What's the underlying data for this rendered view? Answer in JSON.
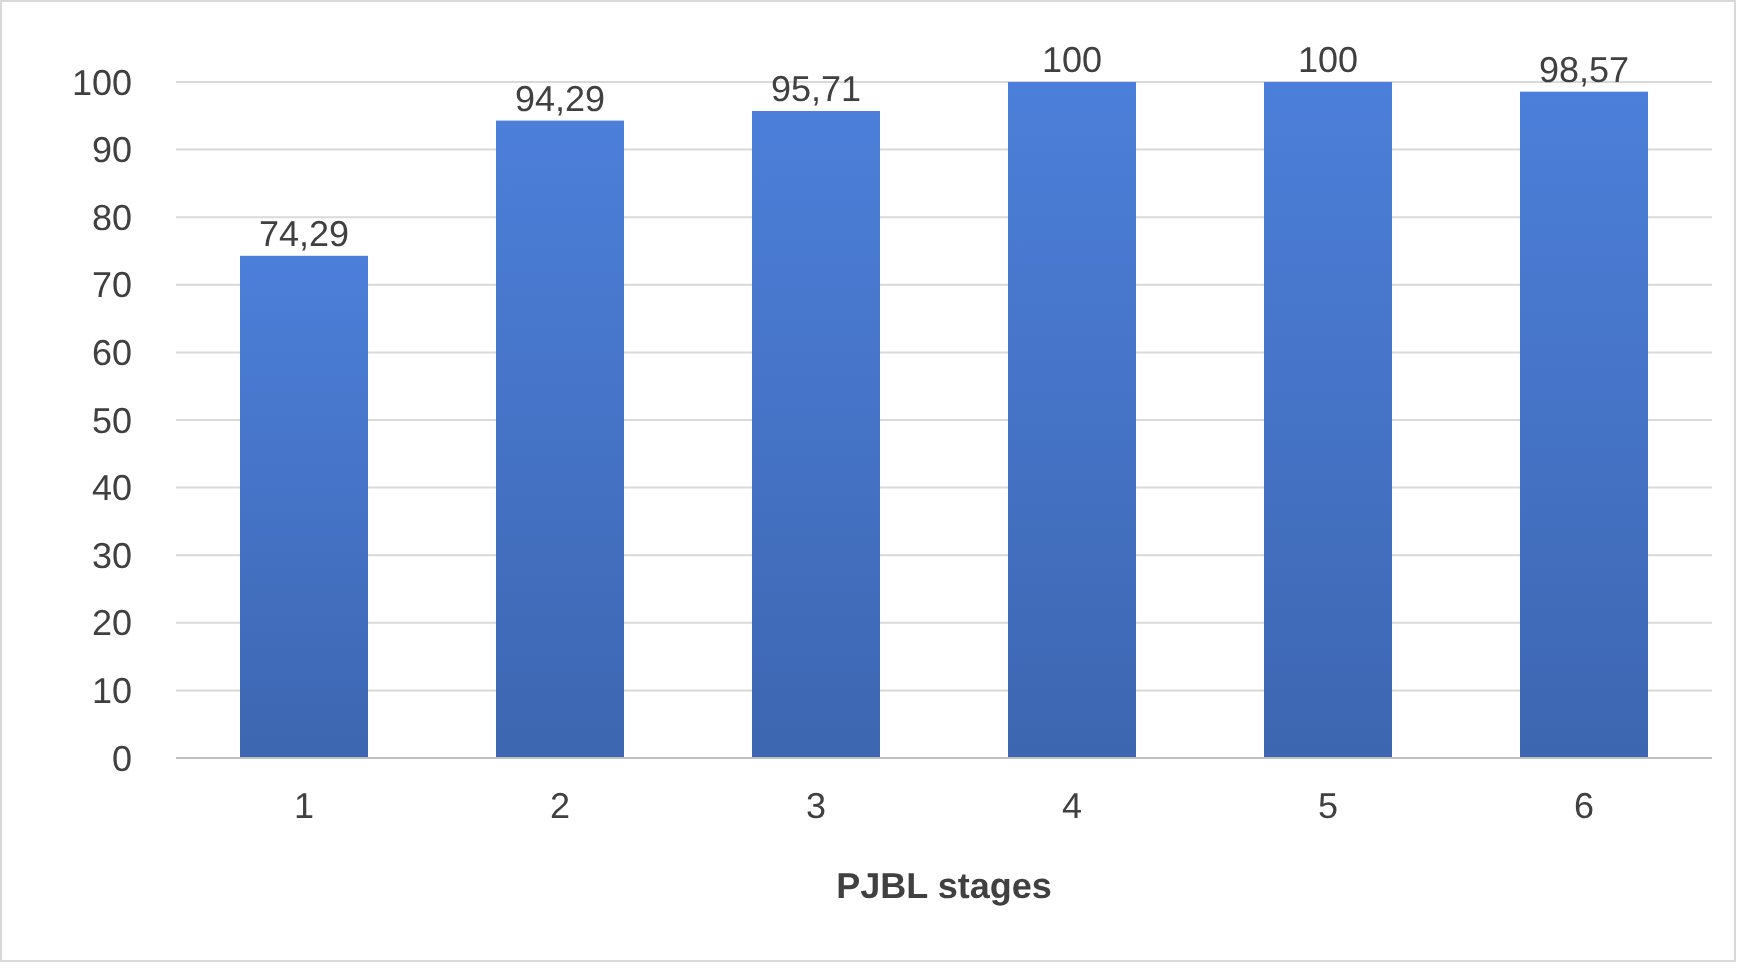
{
  "chart_data": {
    "type": "bar",
    "xlabel": "PJBL stages",
    "categories": [
      "1",
      "2",
      "3",
      "4",
      "5",
      "6"
    ],
    "values": [
      74.29,
      94.29,
      95.71,
      100,
      100,
      98.57
    ],
    "value_labels": [
      "74,29",
      "94,29",
      "95,71",
      "100",
      "100",
      "98,57"
    ],
    "color": "#4472c4",
    "ylim": [
      0,
      100
    ],
    "yticks": [
      0,
      10,
      20,
      30,
      40,
      50,
      60,
      70,
      80,
      90,
      100
    ],
    "grid": "y"
  }
}
